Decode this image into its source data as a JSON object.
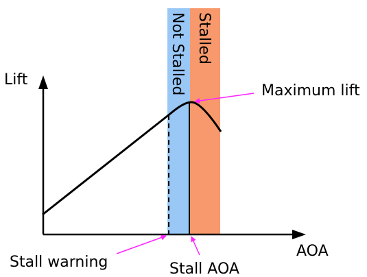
{
  "labels": {
    "y_axis": "Lift",
    "x_axis": "AOA",
    "not_stalled": "Not Stalled",
    "stalled": "Stalled",
    "maximum_lift": "Maximum lift",
    "stall_warning": "Stall warning",
    "stall_aoa": "Stall AOA"
  },
  "colors": {
    "not_stalled_band": "#99c8f7",
    "stalled_band": "#f7996c",
    "callout_arrow": "#ff22ff",
    "line": "#000000"
  }
}
